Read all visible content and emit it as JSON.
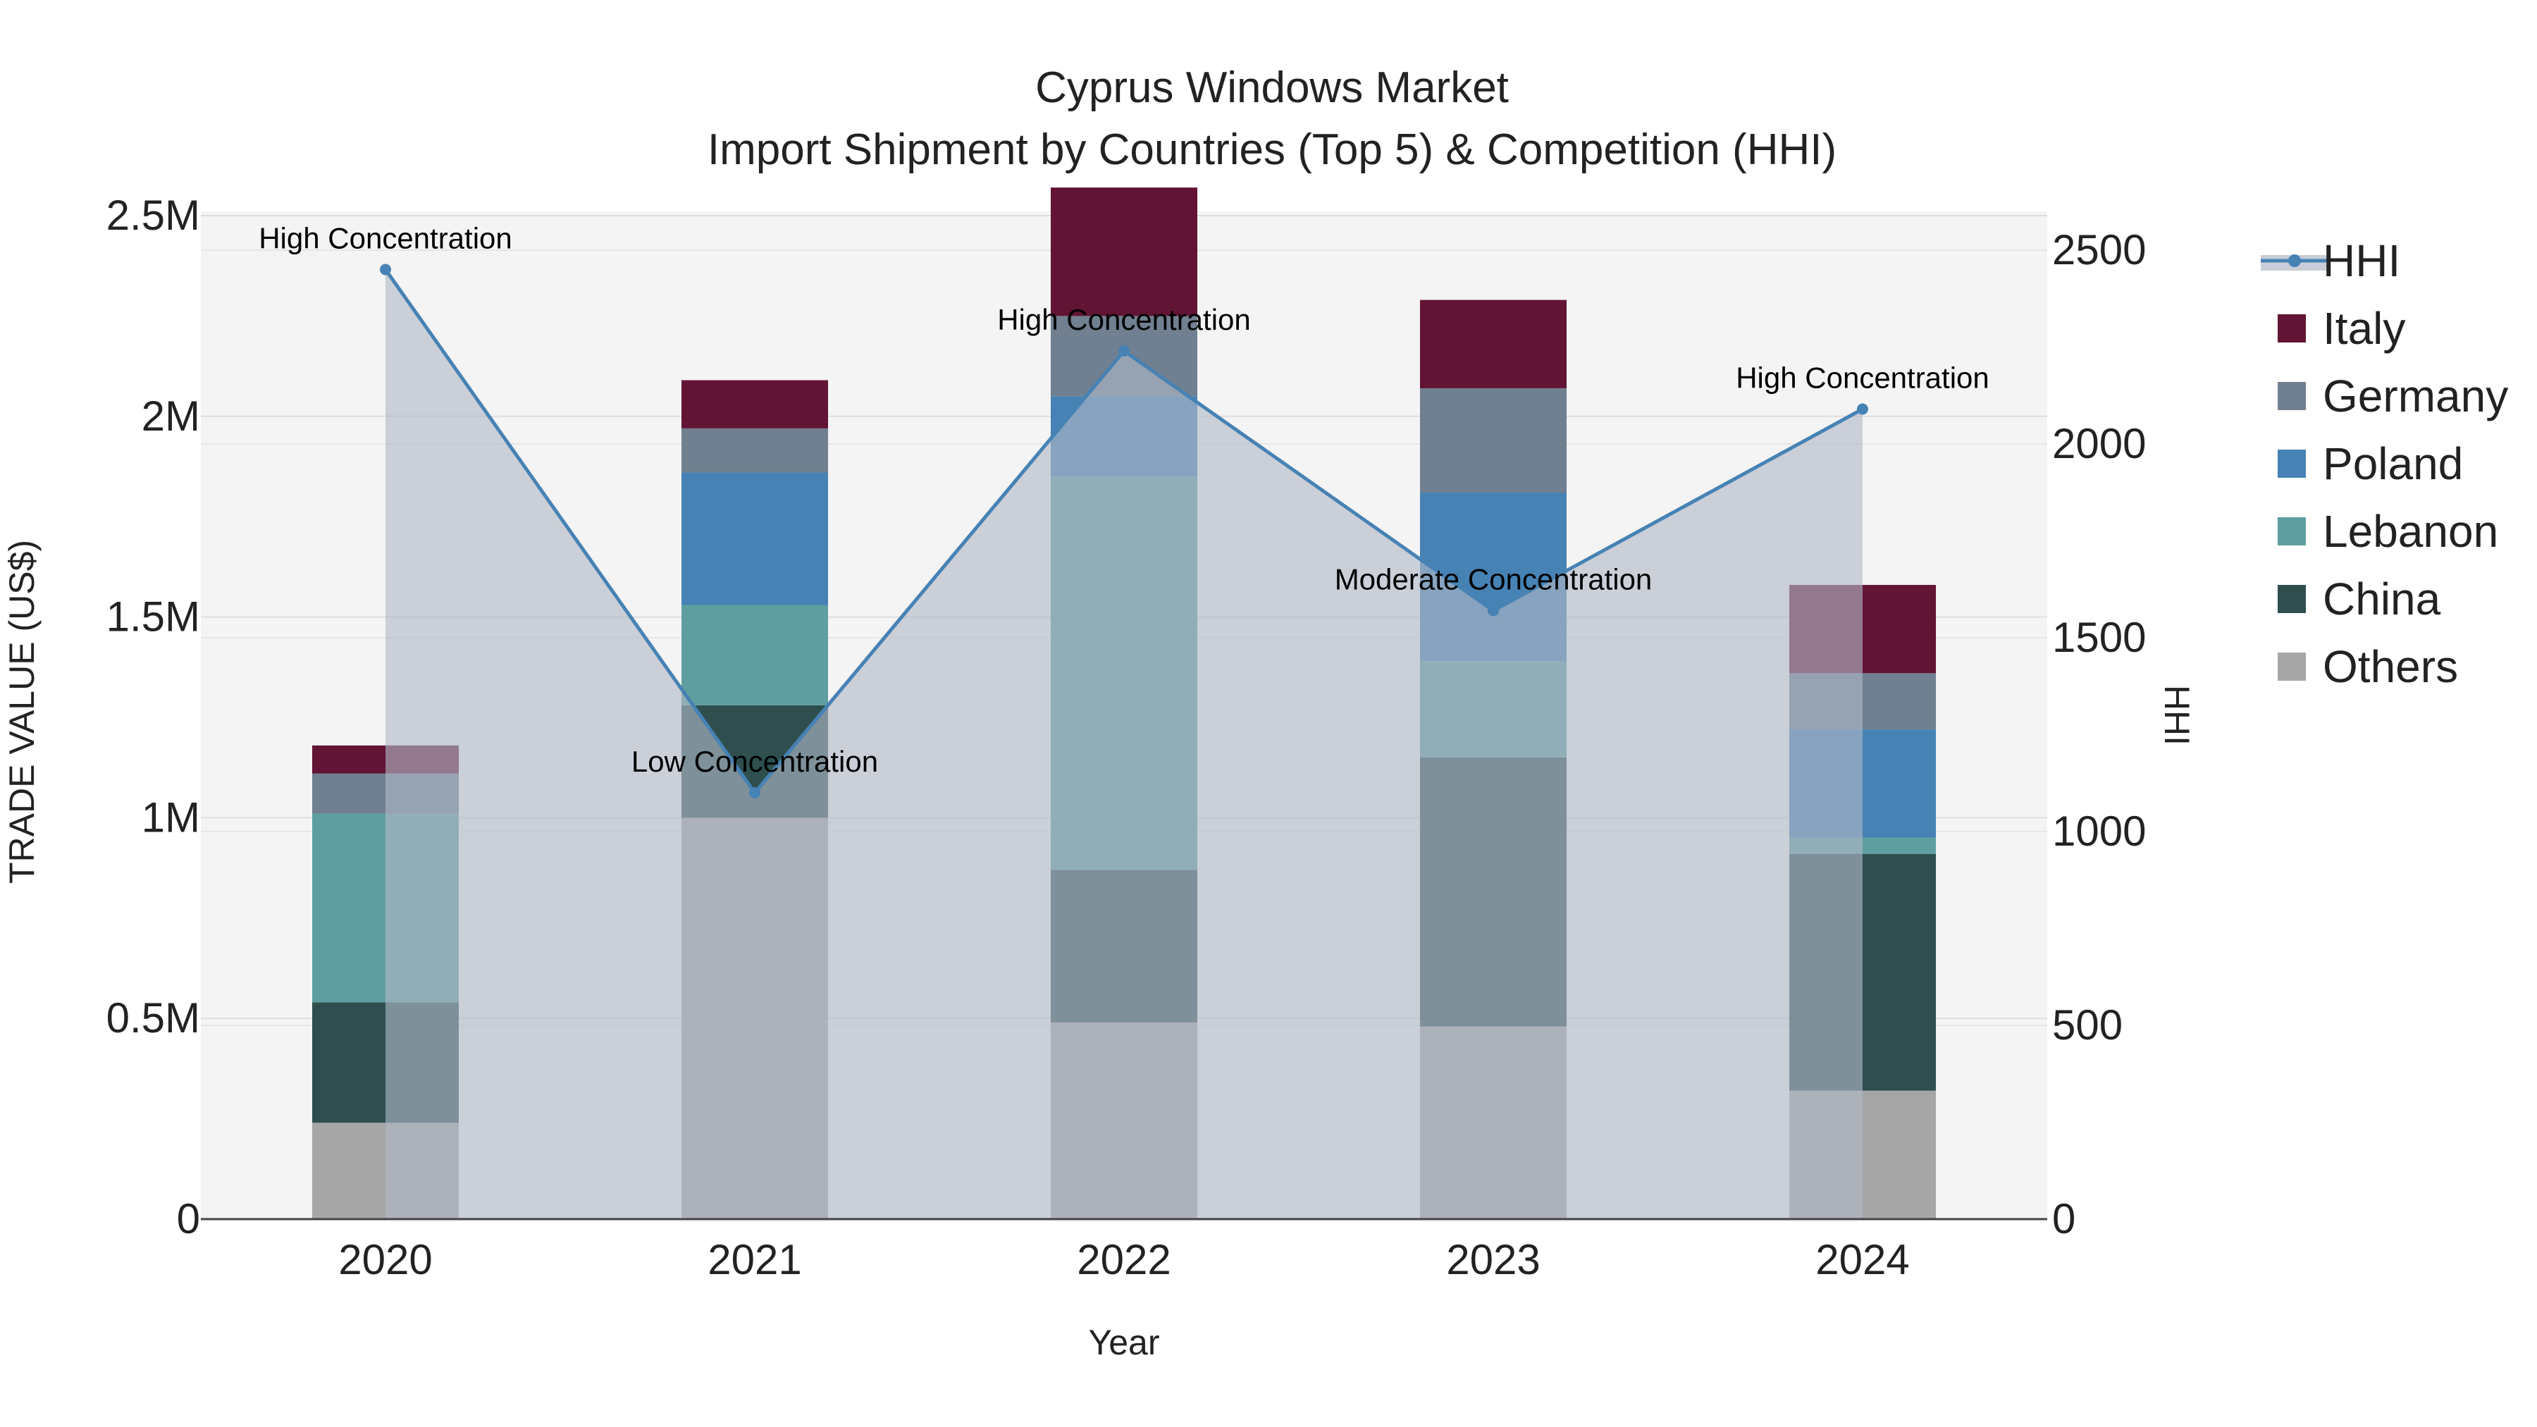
{
  "chart_data": {
    "type": "bar",
    "title": "Cyprus Windows Market",
    "subtitle": "Import Shipment by Countries (Top 5) & Competition (HHI)",
    "xlabel": "Year",
    "ylabel": "TRADE VALUE (US$)",
    "y2label": "HHI",
    "categories": [
      "2020",
      "2021",
      "2022",
      "2023",
      "2024"
    ],
    "ylim": [
      0,
      2500000
    ],
    "y2lim": [
      0,
      2600
    ],
    "yticks": [
      {
        "value": 0,
        "label": "0"
      },
      {
        "value": 500000,
        "label": "0.5M"
      },
      {
        "value": 1000000,
        "label": "1M"
      },
      {
        "value": 1500000,
        "label": "1.5M"
      },
      {
        "value": 2000000,
        "label": "2M"
      },
      {
        "value": 2500000,
        "label": "2.5M"
      }
    ],
    "y2ticks": [
      {
        "value": 0,
        "label": "0"
      },
      {
        "value": 500,
        "label": "500"
      },
      {
        "value": 1000,
        "label": "1000"
      },
      {
        "value": 1500,
        "label": "1500"
      },
      {
        "value": 2000,
        "label": "2000"
      },
      {
        "value": 2500,
        "label": "2500"
      }
    ],
    "series": [
      {
        "name": "Others",
        "color": "#A6A6A6",
        "values": [
          240000,
          1000000,
          490000,
          480000,
          320000
        ]
      },
      {
        "name": "China",
        "color": "#2F4F4F",
        "values": [
          300000,
          280000,
          380000,
          670000,
          590000
        ]
      },
      {
        "name": "Lebanon",
        "color": "#5F9EA0",
        "values": [
          470000,
          250000,
          980000,
          240000,
          40000
        ]
      },
      {
        "name": "Poland",
        "color": "#4682B4",
        "values": [
          0,
          330000,
          200000,
          420000,
          270000
        ]
      },
      {
        "name": "Germany",
        "color": "#708090",
        "values": [
          100000,
          110000,
          200000,
          260000,
          140000
        ]
      },
      {
        "name": "Italy",
        "color": "#611434",
        "values": [
          70000,
          120000,
          320000,
          220000,
          220000
        ]
      }
    ],
    "hhi": {
      "name": "HHI",
      "color": "#4682B4",
      "values": [
        2450,
        1100,
        2240,
        1570,
        2090
      ],
      "annotations": [
        "High Concentration",
        "Low Concentration",
        "High Concentration",
        "Moderate Concentration",
        "High Concentration"
      ]
    },
    "legend": [
      "HHI",
      "Italy",
      "Germany",
      "Poland",
      "Lebanon",
      "China",
      "Others"
    ],
    "legend_position": "right"
  }
}
